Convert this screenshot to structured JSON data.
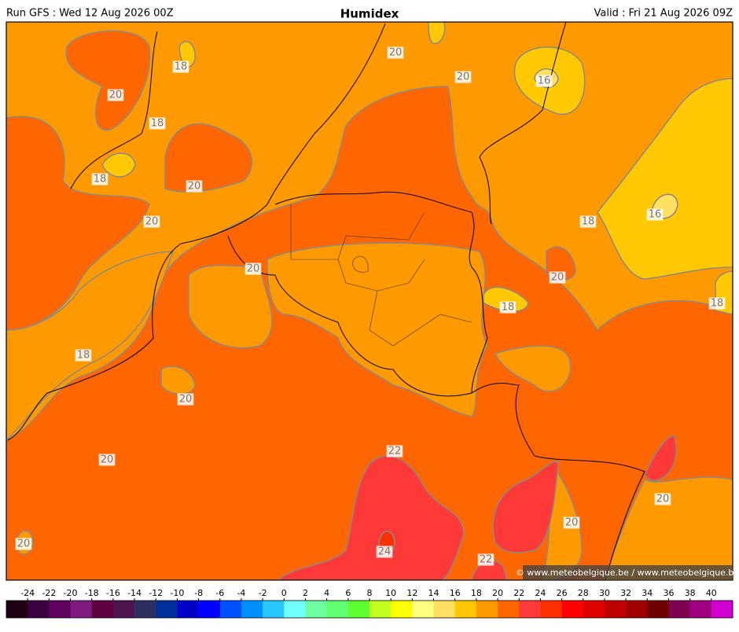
{
  "header": {
    "left": "Run GFS : Wed 12 Aug 2026 00Z",
    "title": "Humidex",
    "right": "Valid : Fri 21 Aug 2026 09Z"
  },
  "map": {
    "contour_labels": [
      20,
      18,
      18,
      18,
      20,
      20,
      20,
      18,
      20,
      20,
      20,
      20,
      20,
      16,
      18,
      16,
      20,
      18,
      18,
      22,
      24,
      22,
      20,
      20
    ],
    "credit": "© www.meteobelgique.be / www.meteobelgique.be"
  },
  "colorbar": {
    "ticks": [
      -24,
      -22,
      -20,
      -18,
      -16,
      -14,
      -12,
      -10,
      -8,
      -6,
      -4,
      -2,
      0,
      2,
      4,
      6,
      8,
      10,
      12,
      14,
      16,
      18,
      20,
      22,
      24,
      26,
      28,
      30,
      32,
      34,
      36,
      38,
      40
    ],
    "colors": [
      "#1e0012",
      "#3c0040",
      "#5e0060",
      "#7e1a80",
      "#600040",
      "#4e1450",
      "#2c3060",
      "#00309a",
      "#0000c8",
      "#0000ff",
      "#0050ff",
      "#0090ff",
      "#28c8ff",
      "#70ffff",
      "#70ffa0",
      "#60ff70",
      "#60ff30",
      "#c0ff20",
      "#ffff00",
      "#ffff80",
      "#ffe060",
      "#ffc800",
      "#ff9900",
      "#ff6600",
      "#ff3838",
      "#ff3000",
      "#ff0000",
      "#e00000",
      "#c00000",
      "#a00000",
      "#700000",
      "#800050",
      "#a00080",
      "#d000d0"
    ]
  }
}
